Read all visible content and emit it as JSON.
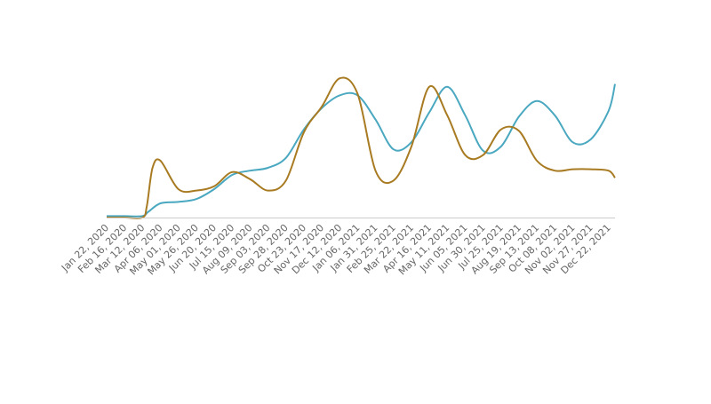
{
  "chart_data": {
    "type": "line",
    "title": "",
    "xlabel": "",
    "ylabel": "",
    "grid": false,
    "legend": "none",
    "x_type": "date",
    "xlim": [
      "2020-01-22",
      "2021-12-31"
    ],
    "categories": [
      "Jan 22, 2020",
      "Feb 16, 2020",
      "Mar 12, 2020",
      "Apr 06, 2020",
      "May 01, 2020",
      "May 26, 2020",
      "Jun 20, 2020",
      "Jul 15, 2020",
      "Aug 09, 2020",
      "Sep 03, 2020",
      "Sep 28, 2020",
      "Oct 23, 2020",
      "Nov 17, 2020",
      "Dec 12, 2020",
      "Jan 06, 2021",
      "Jan 31, 2021",
      "Feb 25, 2021",
      "Mar 22, 2021",
      "Apr 16, 2021",
      "May 11, 2021",
      "Jun 05, 2021",
      "Jun 30, 2021",
      "Jul 25, 2021",
      "Aug 19, 2021",
      "Sep 13, 2021",
      "Oct 08, 2021",
      "Nov 02, 2021",
      "Nov 27, 2021",
      "Dec 22, 2021"
    ],
    "ylim": [
      0,
      100
    ],
    "series": [
      {
        "color": "#4aa8c0",
        "x": [
          "2020-01-22",
          "2020-02-16",
          "2020-03-12",
          "2020-03-20",
          "2020-04-06",
          "2020-05-01",
          "2020-05-26",
          "2020-06-20",
          "2020-07-15",
          "2020-08-09",
          "2020-09-03",
          "2020-09-28",
          "2020-10-23",
          "2020-11-17",
          "2020-12-12",
          "2021-01-06",
          "2021-01-31",
          "2021-02-25",
          "2021-03-22",
          "2021-04-16",
          "2021-05-11",
          "2021-06-05",
          "2021-06-30",
          "2021-07-25",
          "2021-08-19",
          "2021-09-13",
          "2021-10-08",
          "2021-11-02",
          "2021-11-27",
          "2021-12-22",
          "2021-12-31"
        ],
        "values": [
          1,
          1,
          1,
          4,
          10,
          11,
          13,
          20,
          30,
          33,
          35,
          42,
          62,
          77,
          86,
          86,
          69,
          48,
          53,
          74,
          92,
          72,
          47,
          50,
          71,
          82,
          72,
          53,
          55,
          75,
          94
        ]
      },
      {
        "color": "#a87b22",
        "x": [
          "2020-01-22",
          "2020-02-16",
          "2020-03-12",
          "2020-03-18",
          "2020-03-26",
          "2020-04-06",
          "2020-05-01",
          "2020-05-26",
          "2020-06-20",
          "2020-07-15",
          "2020-08-09",
          "2020-09-03",
          "2020-09-28",
          "2020-10-23",
          "2020-11-17",
          "2020-12-12",
          "2021-01-06",
          "2021-01-31",
          "2021-02-25",
          "2021-03-22",
          "2021-04-16",
          "2021-05-11",
          "2021-06-05",
          "2021-06-30",
          "2021-07-25",
          "2021-08-19",
          "2021-09-13",
          "2021-10-08",
          "2021-11-02",
          "2021-11-27",
          "2021-12-22",
          "2021-12-31"
        ],
        "values": [
          0,
          0,
          0,
          8,
          35,
          40,
          20,
          19,
          22,
          32,
          27,
          19,
          26,
          60,
          78,
          98,
          87,
          33,
          26,
          50,
          92,
          72,
          44,
          44,
          62,
          61,
          40,
          33,
          34,
          34,
          33,
          28
        ]
      }
    ]
  }
}
